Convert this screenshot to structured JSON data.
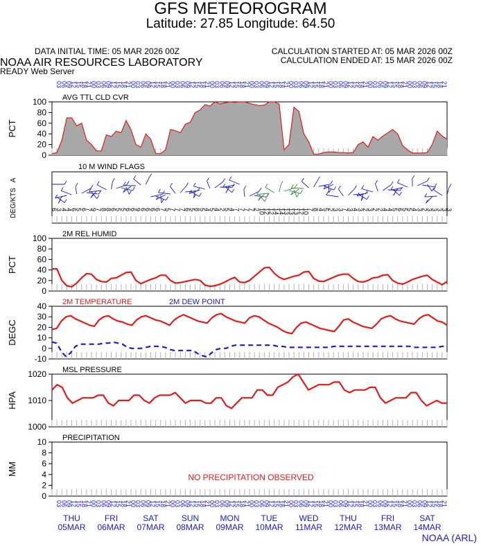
{
  "header": {
    "title": "GFS METEOROGRAM",
    "subtitle": "Latitude: 27.85 Longitude:  64.50",
    "data_initial_time": "DATA INITIAL TIME: 05 MAR 2026 00Z",
    "calc_started": "CALCULATION STARTED AT: 05 MAR 2026 00Z",
    "calc_ended": "CALCULATION ENDED AT: 15 MAR 2026 00Z",
    "lab": "NOAA AIR RESOURCES LABORATORY",
    "server": "READY Web Server",
    "credit": "NOAA (ARL)"
  },
  "colors": {
    "red": "#e41a1a",
    "blue": "#1a1acd",
    "green": "#2e8b2e",
    "fill": "#a8a8a8",
    "grid": "#b4b4b4"
  },
  "x_axis": {
    "hour_labels": [
      "03",
      "06",
      "09",
      "12",
      "15",
      "18",
      "21",
      "00"
    ],
    "days": [
      {
        "dow": "THU",
        "date": "05MAR"
      },
      {
        "dow": "FRI",
        "date": "06MAR"
      },
      {
        "dow": "SAT",
        "date": "07MAR"
      },
      {
        "dow": "SUN",
        "date": "08MAR"
      },
      {
        "dow": "MON",
        "date": "09MAR"
      },
      {
        "dow": "TUE",
        "date": "10MAR"
      },
      {
        "dow": "WED",
        "date": "11MAR"
      },
      {
        "dow": "THU",
        "date": "12MAR"
      },
      {
        "dow": "FRI",
        "date": "13MAR"
      },
      {
        "dow": "SAT",
        "date": "14MAR"
      }
    ]
  },
  "chart_data": [
    {
      "type": "area",
      "title": "AVG TTL CLD CVR",
      "ylabel": "PCT",
      "ylim": [
        0,
        100
      ],
      "yticks": [
        0,
        20,
        40,
        60,
        80,
        100
      ],
      "x_interval_hours": 3,
      "values": [
        3,
        5,
        28,
        70,
        70,
        55,
        60,
        28,
        20,
        8,
        8,
        38,
        35,
        45,
        42,
        65,
        48,
        20,
        15,
        40,
        30,
        3,
        3,
        10,
        48,
        46,
        42,
        58,
        62,
        80,
        85,
        95,
        92,
        100,
        96,
        98,
        100,
        99,
        100,
        100,
        97,
        95,
        93,
        94,
        100,
        100,
        96,
        10,
        20,
        90,
        82,
        40,
        25,
        2,
        2,
        5,
        6,
        6,
        5,
        5,
        4,
        5,
        20,
        25,
        15,
        35,
        28,
        36,
        42,
        48,
        40,
        18,
        10,
        4,
        4,
        4,
        5,
        20,
        45,
        36,
        30
      ]
    },
    {
      "type": "wind_barbs",
      "title": "10 M  WIND FLAGS",
      "ylabel": "DEG/KTS",
      "ylabel_suffix": "A",
      "speed_labels_kts": [
        6,
        3,
        4,
        4,
        6,
        5,
        6,
        7,
        9,
        7,
        8,
        8,
        6,
        5,
        5,
        6,
        6,
        9,
        6,
        6,
        6,
        6,
        7,
        5,
        7,
        7,
        7,
        6,
        5,
        8,
        5,
        4,
        5,
        4,
        2,
        5,
        4,
        7,
        7,
        7,
        7,
        2,
        10,
        12,
        12,
        14,
        14,
        13,
        13,
        13,
        12,
        10,
        7,
        8,
        4,
        5,
        2,
        3,
        3,
        7,
        3,
        4,
        3,
        2,
        3,
        2,
        2,
        4,
        4,
        5,
        6,
        5,
        5,
        4,
        3,
        2,
        3,
        3,
        3,
        3,
        3
      ]
    },
    {
      "type": "line",
      "title": "2M REL HUMID",
      "ylabel": "PCT",
      "ylim": [
        0,
        100
      ],
      "yticks": [
        0,
        20,
        40,
        60,
        80,
        100
      ],
      "x_interval_hours": 3,
      "values": [
        42,
        42,
        20,
        10,
        8,
        15,
        25,
        33,
        32,
        22,
        18,
        17,
        24,
        25,
        30,
        35,
        36,
        20,
        14,
        18,
        22,
        25,
        30,
        30,
        20,
        15,
        16,
        18,
        20,
        22,
        20,
        11,
        9,
        10,
        13,
        17,
        22,
        26,
        17,
        16,
        20,
        28,
        36,
        44,
        45,
        34,
        26,
        22,
        25,
        28,
        30,
        36,
        37,
        24,
        19,
        18,
        22,
        26,
        30,
        32,
        32,
        24,
        18,
        17,
        20,
        25,
        26,
        30,
        31,
        20,
        15,
        13,
        17,
        22,
        25,
        28,
        30,
        22,
        17,
        12,
        18
      ]
    },
    {
      "type": "line",
      "title": "2M TEMPERATURE",
      "title2": "2M  DEW POINT",
      "ylabel": "DEGC",
      "ylim": [
        -10,
        40
      ],
      "yticks": [
        -10,
        0,
        10,
        20,
        30,
        40
      ],
      "x_interval_hours": 3,
      "series": [
        {
          "name": "2M TEMPERATURE",
          "values": [
            18,
            19,
            26,
            30,
            31,
            28,
            26,
            24,
            22,
            21,
            27,
            30,
            31,
            28,
            26,
            25,
            23,
            22,
            27,
            30,
            31,
            29,
            27,
            26,
            24,
            22,
            27,
            30,
            32,
            30,
            28,
            26,
            25,
            24,
            29,
            32,
            33,
            30,
            28,
            26,
            25,
            24,
            29,
            31,
            30,
            27,
            24,
            22,
            20,
            17,
            15,
            14,
            20,
            24,
            25,
            23,
            21,
            19,
            18,
            17,
            16,
            21,
            27,
            28,
            25,
            23,
            21,
            20,
            19,
            23,
            28,
            30,
            31,
            28,
            26,
            25,
            24,
            23,
            28,
            31,
            32,
            29,
            26,
            25,
            22
          ]
        },
        {
          "name": "2M  DEW POINT",
          "values": [
            6,
            5,
            -3,
            -8,
            -4,
            2,
            4,
            4,
            4,
            4,
            4,
            5,
            5,
            6,
            5,
            4,
            1,
            0,
            0,
            0,
            1,
            2,
            2,
            2,
            1,
            -1,
            -2,
            -2,
            -2,
            -2,
            -2,
            -5,
            -7,
            -8,
            -4,
            -1,
            0,
            0,
            2,
            3,
            3,
            3,
            3,
            3,
            3,
            3,
            3,
            3,
            2,
            2,
            1,
            1,
            1,
            1,
            1,
            1,
            1,
            1,
            1,
            1,
            2,
            2,
            2,
            2,
            2,
            2,
            2,
            2,
            2,
            2,
            2,
            2,
            2,
            2,
            2,
            2,
            2,
            1,
            1,
            1,
            1,
            1,
            1,
            2,
            2
          ]
        }
      ]
    },
    {
      "type": "line",
      "title": "MSL PRESSURE",
      "ylabel": "HPA",
      "ylim": [
        1000,
        1020
      ],
      "yticks": [
        1000,
        1010,
        1020
      ],
      "x_interval_hours": 3,
      "values": [
        1014,
        1016,
        1015,
        1011,
        1009,
        1010,
        1011,
        1011,
        1011,
        1012,
        1012,
        1009,
        1008,
        1010,
        1010,
        1010,
        1012,
        1012,
        1010,
        1009,
        1011,
        1012,
        1012,
        1012,
        1013,
        1011,
        1009,
        1010,
        1010,
        1010,
        1009,
        1009,
        1011,
        1011,
        1008,
        1007,
        1009,
        1011,
        1011,
        1011,
        1014,
        1014,
        1012,
        1012,
        1015,
        1016,
        1017,
        1019,
        1020,
        1017,
        1014,
        1015,
        1016,
        1016,
        1016,
        1017,
        1017,
        1014,
        1013,
        1014,
        1014,
        1014,
        1015,
        1015,
        1011,
        1009,
        1010,
        1011,
        1011,
        1011,
        1013,
        1013,
        1010,
        1008,
        1009,
        1010,
        1009,
        1009
      ]
    },
    {
      "type": "line",
      "title": "PRECIPITATION",
      "ylabel": "MM",
      "ylim": [
        0,
        10
      ],
      "yticks": [
        0,
        2,
        4,
        6,
        8,
        10
      ],
      "message": "NO PRECIPITATION OBSERVED",
      "values": []
    }
  ]
}
